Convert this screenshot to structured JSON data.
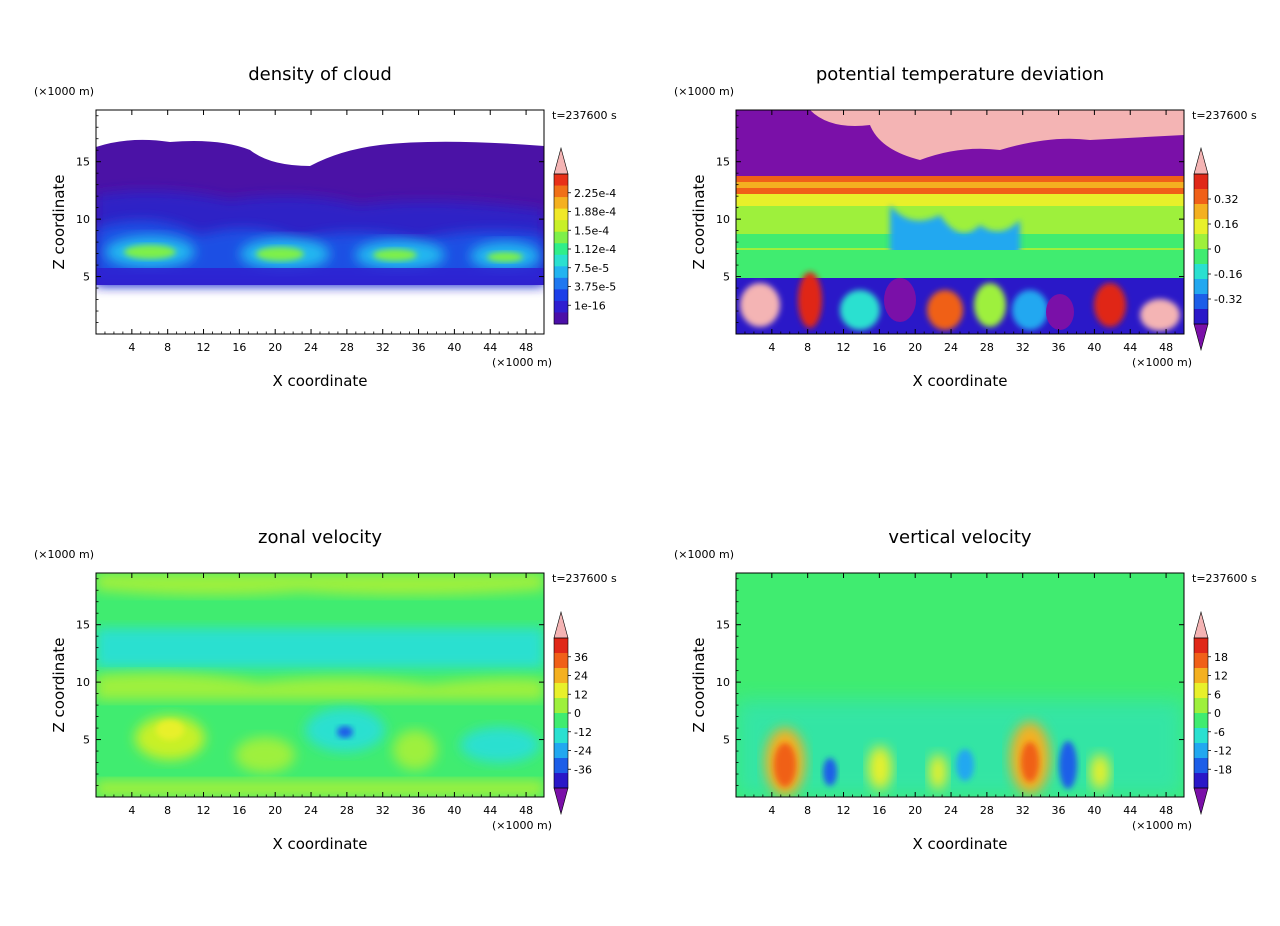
{
  "chart_data": [
    {
      "type": "heatmap",
      "title": "density of cloud",
      "xlabel": "X coordinate",
      "ylabel": "Z coordinate",
      "x_unit": "(×1000 m)",
      "y_unit": "(×1000 m)",
      "time_label": "t=237600 s",
      "xlim": [
        0,
        50
      ],
      "ylim": [
        0,
        19.5
      ],
      "x_ticks": [
        4,
        8,
        12,
        16,
        20,
        24,
        28,
        32,
        36,
        40,
        44,
        48
      ],
      "y_ticks": [
        5,
        10,
        15
      ],
      "colorbar": {
        "labels": [
          "2.25e-4",
          "1.88e-4",
          "1.5e-4",
          "1.12e-4",
          "7.5e-5",
          "3.75e-5",
          "1e-16"
        ],
        "colors": [
          "#4b0fa8",
          "#2f1ed0",
          "#1c3fe8",
          "#1f78f0",
          "#22b4f0",
          "#2ae0d0",
          "#30ee8a",
          "#7ef04a",
          "#c8f028",
          "#f0e828",
          "#f4b020",
          "#f07018",
          "#e83018",
          "#f4b4b4"
        ],
        "under_arrow": false,
        "over_arrow": true
      },
      "fields": {
        "description_of_values": "cloud density, purple aloft (~1e-16 to 3.75e-5) between z=5 and z=17, green/cyan layer (~1.1e-4 to 1.9e-4) near z=6 to 9, white (no cloud) below z=5 and above z=17"
      }
    },
    {
      "type": "heatmap",
      "title": "potential temperature deviation",
      "xlabel": "X coordinate",
      "ylabel": "Z coordinate",
      "x_unit": "(×1000 m)",
      "y_unit": "(×1000 m)",
      "time_label": "t=237600 s",
      "xlim": [
        0,
        50
      ],
      "ylim": [
        0,
        19.5
      ],
      "x_ticks": [
        4,
        8,
        12,
        16,
        20,
        24,
        28,
        32,
        36,
        40,
        44,
        48
      ],
      "y_ticks": [
        5,
        10,
        15
      ],
      "colorbar": {
        "labels": [
          "0.32",
          "0.16",
          "0",
          "-0.16",
          "-0.32"
        ],
        "colors": [
          "#7a10a8",
          "#2a18c8",
          "#1c5ee8",
          "#22a8f0",
          "#2ae0d0",
          "#40ec70",
          "#9ef03c",
          "#e8f02a",
          "#f4b020",
          "#f06018",
          "#e02818",
          "#f4b4b4"
        ],
        "under_arrow": true,
        "over_arrow": true
      }
    },
    {
      "type": "heatmap",
      "title": "zonal velocity",
      "xlabel": "X coordinate",
      "ylabel": "Z coordinate",
      "x_unit": "(×1000 m)",
      "y_unit": "(×1000 m)",
      "time_label": "t=237600 s",
      "xlim": [
        0,
        50
      ],
      "ylim": [
        0,
        19.5
      ],
      "x_ticks": [
        4,
        8,
        12,
        16,
        20,
        24,
        28,
        32,
        36,
        40,
        44,
        48
      ],
      "y_ticks": [
        5,
        10,
        15
      ],
      "colorbar": {
        "labels": [
          "36",
          "24",
          "12",
          "0",
          "-12",
          "-24",
          "-36"
        ],
        "colors": [
          "#7a10a8",
          "#2a18c8",
          "#1c5ee8",
          "#22a8f0",
          "#2ae0d0",
          "#40ec70",
          "#9ef03c",
          "#e8f02a",
          "#f4b020",
          "#f06018",
          "#e02818",
          "#f4b4b4"
        ],
        "under_arrow": true,
        "over_arrow": true
      }
    },
    {
      "type": "heatmap",
      "title": "vertical velocity",
      "xlabel": "X coordinate",
      "ylabel": "Z coordinate",
      "x_unit": "(×1000 m)",
      "y_unit": "(×1000 m)",
      "time_label": "t=237600 s",
      "xlim": [
        0,
        50
      ],
      "ylim": [
        0,
        19.5
      ],
      "x_ticks": [
        4,
        8,
        12,
        16,
        20,
        24,
        28,
        32,
        36,
        40,
        44,
        48
      ],
      "y_ticks": [
        5,
        10,
        15
      ],
      "colorbar": {
        "labels": [
          "18",
          "12",
          "6",
          "0",
          "-6",
          "-12",
          "-18"
        ],
        "colors": [
          "#7a10a8",
          "#2a18c8",
          "#1c5ee8",
          "#22a8f0",
          "#2ae0d0",
          "#40ec70",
          "#9ef03c",
          "#e8f02a",
          "#f4b020",
          "#f06018",
          "#e02818",
          "#f4b4b4"
        ],
        "under_arrow": true,
        "over_arrow": true
      }
    }
  ]
}
